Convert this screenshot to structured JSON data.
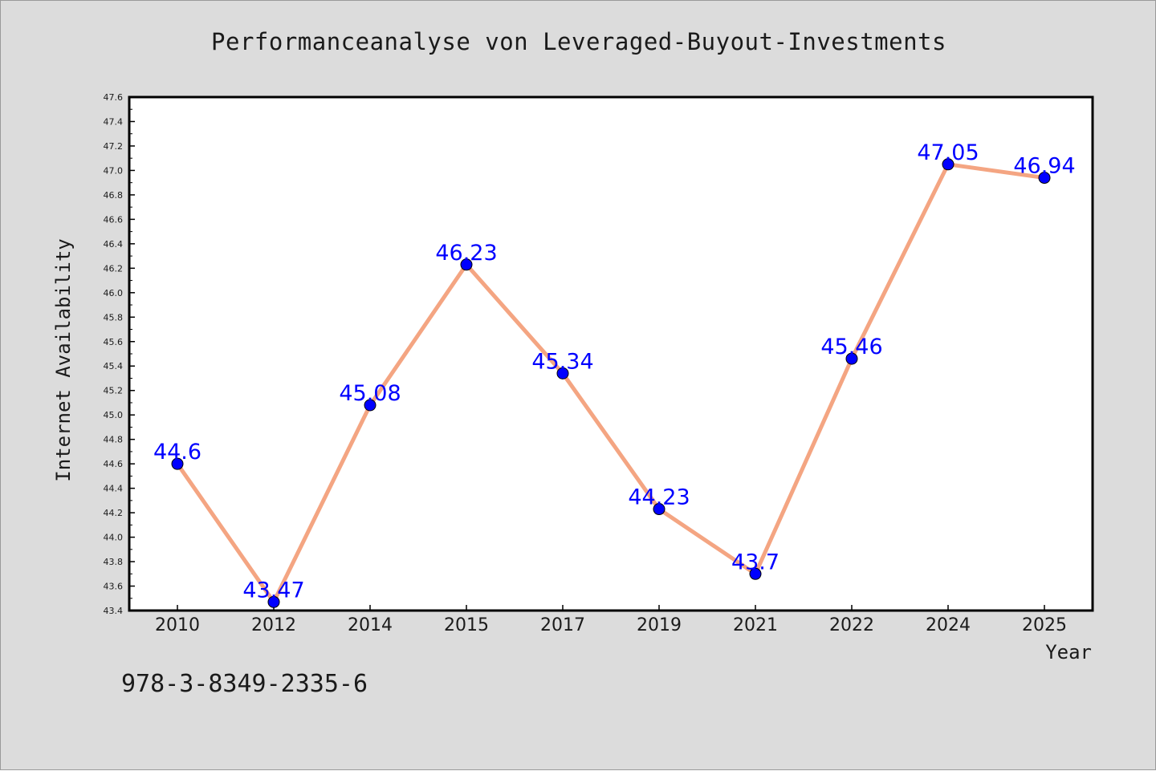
{
  "chart_data": {
    "type": "line",
    "title": "Performanceanalyse von Leveraged-Buyout-Investments",
    "xlabel": "Year",
    "ylabel": "Internet Availability",
    "categories": [
      "2010",
      "2012",
      "2014",
      "2015",
      "2017",
      "2019",
      "2021",
      "2022",
      "2024",
      "2025"
    ],
    "series": [
      {
        "values": [
          44.6,
          43.47,
          45.08,
          46.23,
          45.34,
          44.23,
          43.7,
          45.46,
          47.05,
          46.94
        ]
      }
    ],
    "data_labels": [
      "44.6",
      "43.47",
      "45.08",
      "46.23",
      "45.34",
      "44.23",
      "43.7",
      "45.46",
      "47.05",
      "46.94"
    ],
    "ylim": [
      43.4,
      47.6
    ],
    "yticks": [
      "43.4",
      "43.6",
      "43.8",
      "44.0",
      "44.2",
      "44.4",
      "44.6",
      "44.8",
      "45.0",
      "45.2",
      "45.4",
      "45.6",
      "45.8",
      "46.0",
      "46.2",
      "46.4",
      "46.6",
      "46.8",
      "47.0",
      "47.2",
      "47.4",
      "47.6"
    ],
    "grid": false,
    "line_color": "#f4a582",
    "marker_color": "#0000ff",
    "label_color": "#0000ff"
  },
  "footnote": "978-3-8349-2335-6"
}
